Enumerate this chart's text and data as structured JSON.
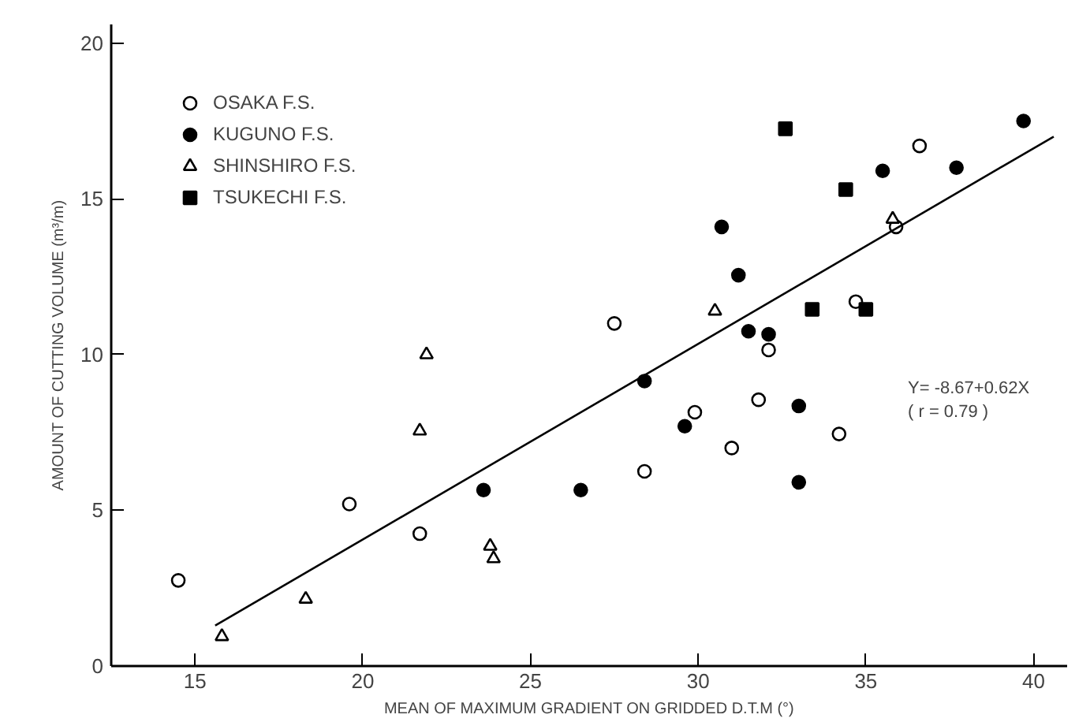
{
  "chart_data": {
    "type": "scatter",
    "xlabel": "MEAN OF MAXIMUM GRADIENT ON GRIDDED D.T.M (°)",
    "ylabel": "AMOUNT OF CUTTING VOLUME (m³/m)",
    "xlim": [
      12.5,
      41
    ],
    "ylim": [
      0,
      20.6
    ],
    "xticks": [
      15,
      20,
      25,
      30,
      35,
      40
    ],
    "yticks": [
      0,
      5,
      10,
      15,
      20
    ],
    "grid": false,
    "legend": "top left",
    "annotations": [
      "Y= -8.67+0.62X",
      "( r = 0.79 )"
    ],
    "series": [
      {
        "name": "OSAKA F.S.",
        "color": "#ffffff",
        "marker": "circle",
        "x": [
          14.5,
          19.6,
          21.7,
          27.5,
          28.4,
          29.9,
          31.0,
          31.8,
          32.1,
          34.2,
          34.7,
          35.9,
          36.6
        ],
        "values": [
          2.75,
          5.2,
          4.25,
          11.0,
          6.25,
          8.15,
          7.0,
          8.55,
          10.15,
          7.45,
          11.7,
          14.1,
          16.7
        ]
      },
      {
        "name": "KUGUNO F.S.",
        "color": "#000000",
        "marker": "circle",
        "x": [
          23.6,
          26.5,
          28.4,
          29.6,
          30.7,
          31.2,
          31.5,
          32.1,
          33.0,
          33.0,
          35.5,
          37.7,
          39.7
        ],
        "values": [
          5.65,
          5.65,
          9.15,
          7.7,
          14.1,
          12.55,
          10.75,
          10.65,
          8.35,
          5.9,
          15.9,
          16.0,
          17.5
        ]
      },
      {
        "name": "SHINSHIRO F.S.",
        "color": "#ffffff",
        "marker": "triangle",
        "x": [
          15.8,
          18.3,
          21.9,
          21.7,
          23.8,
          23.9,
          30.5,
          35.8
        ],
        "values": [
          0.95,
          2.15,
          10.0,
          7.55,
          3.85,
          3.45,
          11.4,
          14.35
        ]
      },
      {
        "name": "TSUKECHI F.S.",
        "color": "#000000",
        "marker": "square",
        "x": [
          32.6,
          34.4,
          33.4,
          35.0
        ],
        "values": [
          17.25,
          15.3,
          11.45,
          11.45
        ]
      },
      {
        "type": "line",
        "color": "#000000",
        "marker": "none",
        "x": [
          15.6,
          40.6
        ],
        "values": [
          1.3,
          17.0
        ]
      }
    ]
  }
}
